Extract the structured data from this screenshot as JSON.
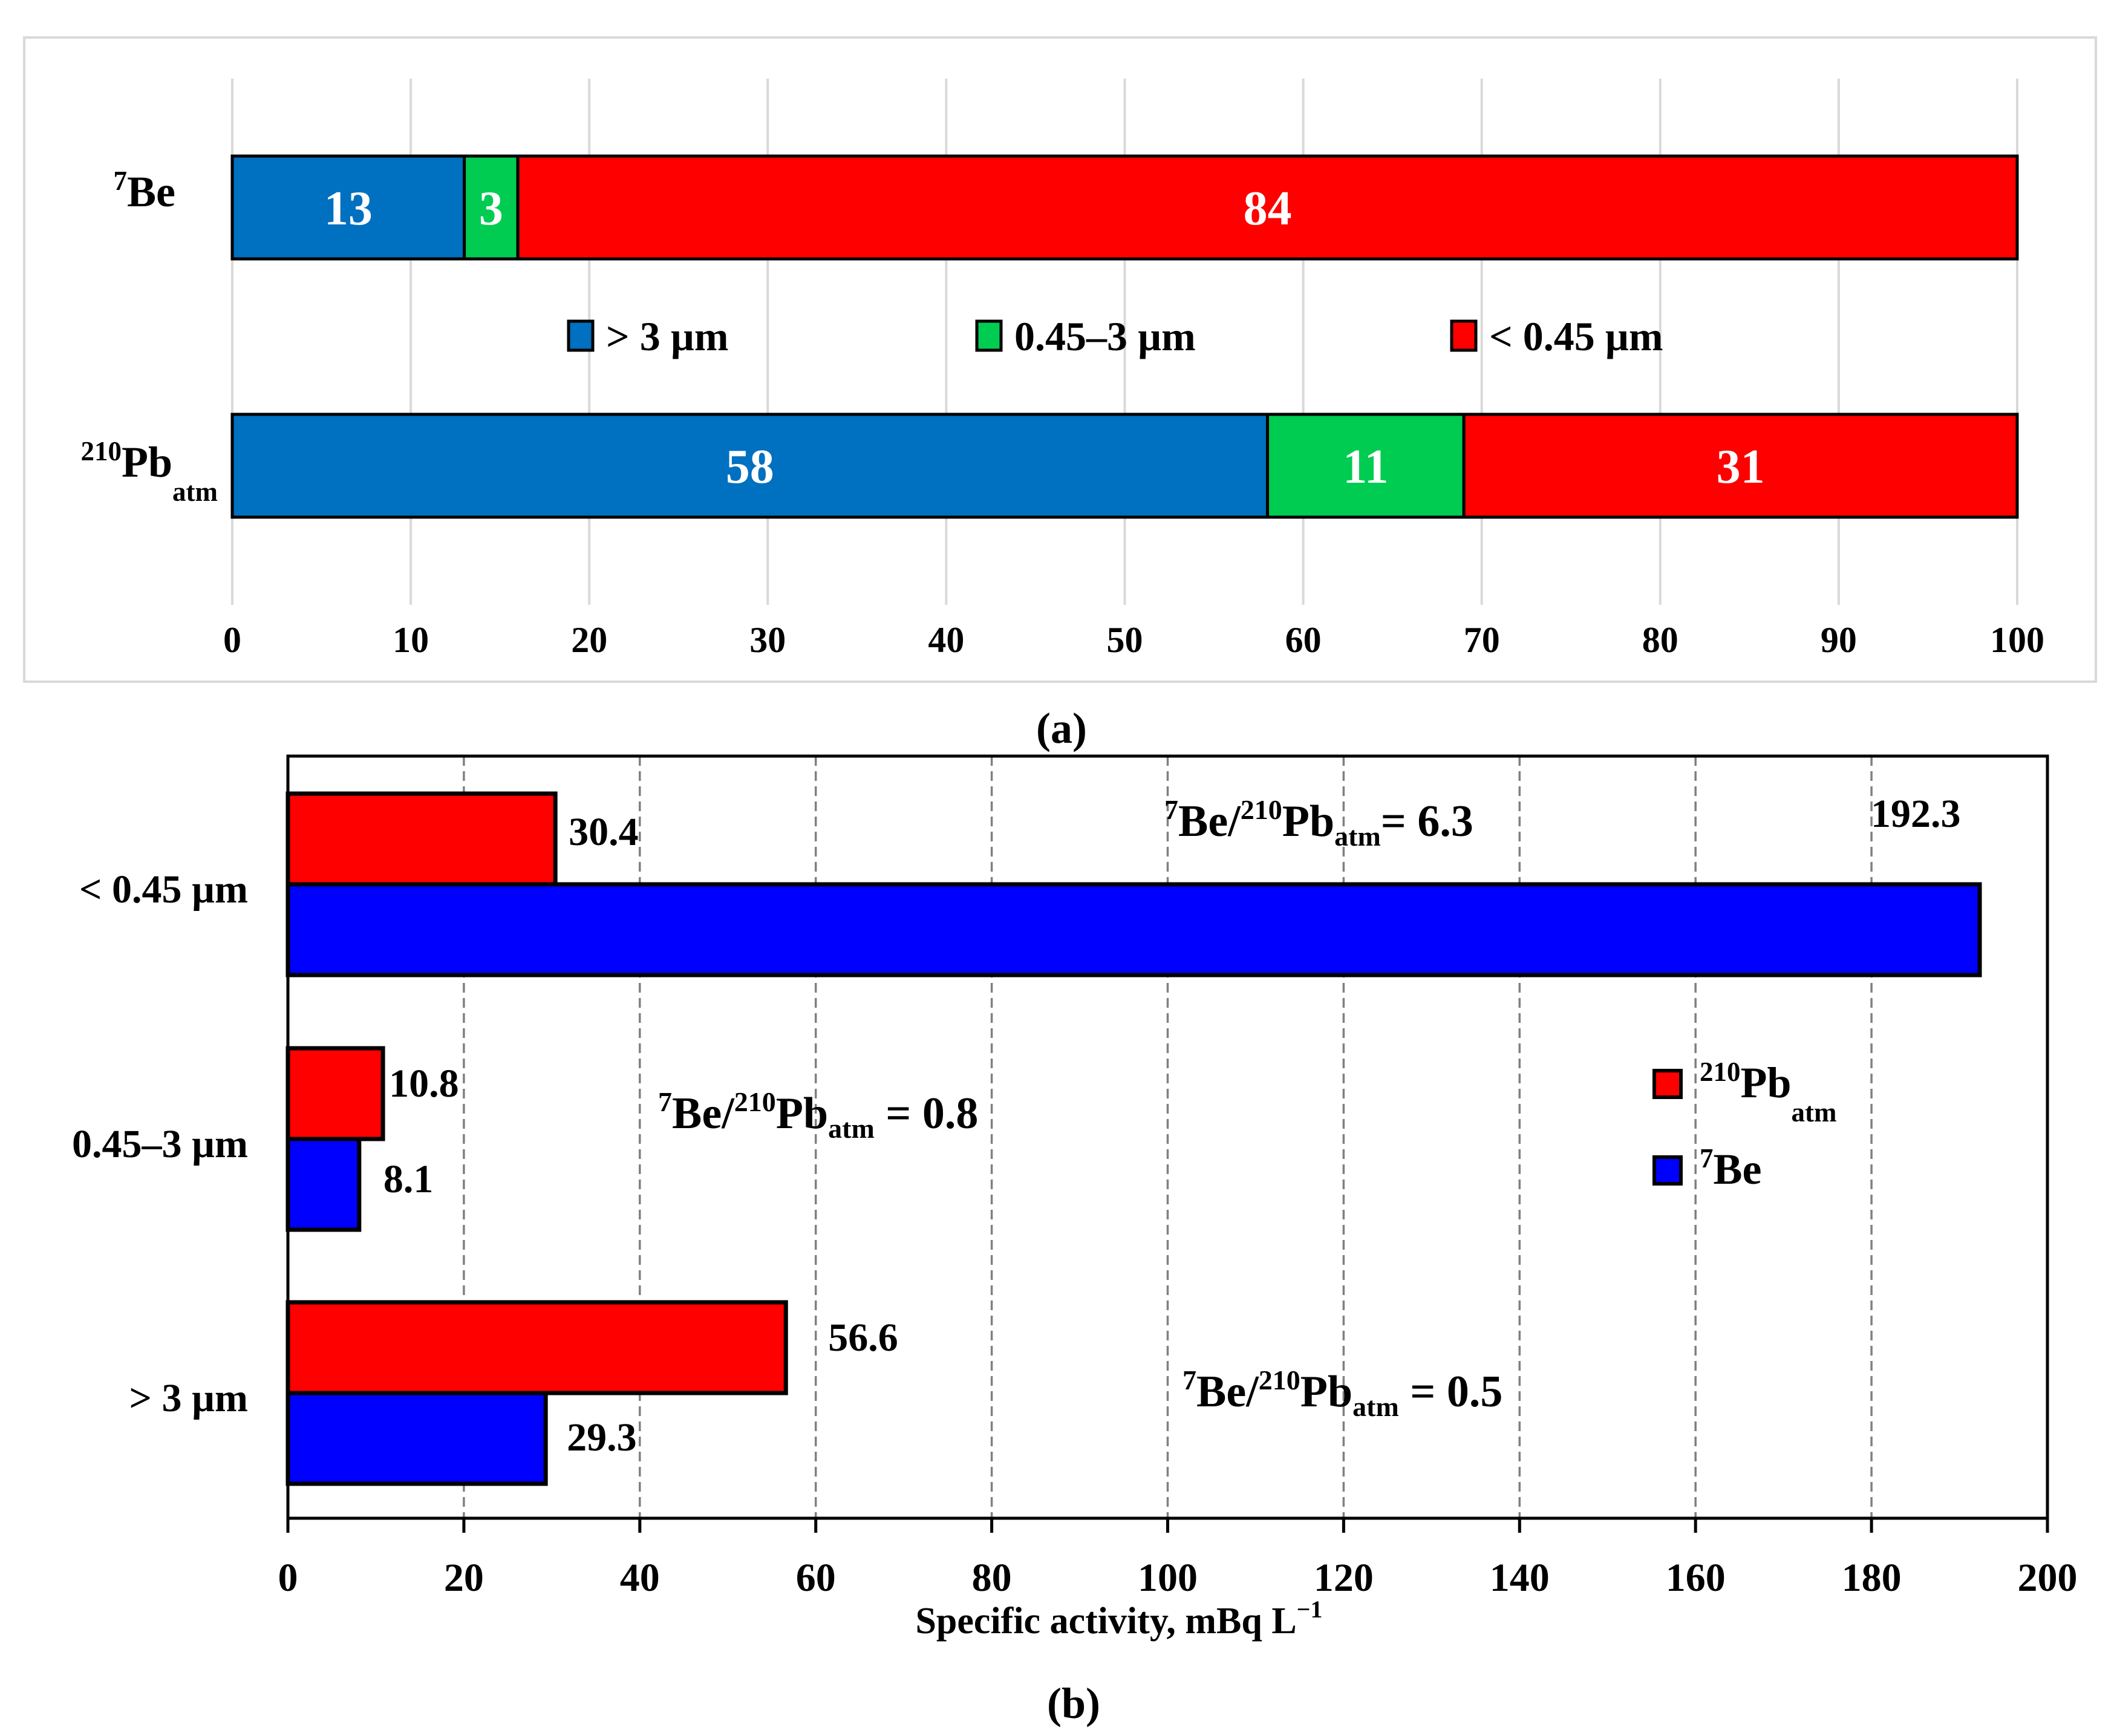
{
  "chart_data": [
    {
      "type": "bar",
      "orientation": "horizontal",
      "stacked": true,
      "panel_label": "(a)",
      "categories": [
        {
          "base": "Be",
          "sup": "7",
          "sub": ""
        },
        {
          "base": "Pb",
          "sup": "210",
          "sub": "atm"
        }
      ],
      "series": [
        {
          "name": "> 3 µm",
          "color": "#0070c0",
          "label_color": "#ffffff",
          "values": [
            13,
            58
          ]
        },
        {
          "name": "0.45–3 µm",
          "color": "#00cc52",
          "label_color": "#ffffff",
          "values": [
            3,
            11
          ]
        },
        {
          "name": "< 0.45 µm",
          "color": "#ff0000",
          "label_color": "#ffffff",
          "values": [
            84,
            31
          ]
        }
      ],
      "xlim": [
        0,
        100
      ],
      "xticks": [
        0,
        10,
        20,
        30,
        40,
        50,
        60,
        70,
        80,
        90,
        100
      ],
      "grid": "vertical",
      "legend": "middle"
    },
    {
      "type": "bar",
      "orientation": "horizontal",
      "stacked": false,
      "panel_label": "(b)",
      "categories": [
        "< 0.45 µm",
        "0.45–3 µm",
        "> 3 µm"
      ],
      "series": [
        {
          "name": {
            "base": "Pb",
            "sup": "210",
            "sub": "atm"
          },
          "color": "#ff0000",
          "values": [
            30.4,
            10.8,
            56.6
          ],
          "labels": [
            "30.4",
            "10.8",
            "56.6"
          ]
        },
        {
          "name": {
            "base": "Be",
            "sup": "7",
            "sub": ""
          },
          "color": "#0000ff",
          "values": [
            192.3,
            8.1,
            29.3
          ],
          "labels": [
            "192.3",
            "8.1",
            "29.3"
          ]
        }
      ],
      "xlabel": {
        "text": "Specific activity, mBq L",
        "sup": "−1"
      },
      "xlim": [
        0,
        200
      ],
      "xticks": [
        0,
        20,
        40,
        60,
        80,
        100,
        120,
        140,
        160,
        180,
        200
      ],
      "grid": "vertical-dashed",
      "legend": "right",
      "annotations": [
        {
          "sup1": "7",
          "t1": "Be/",
          "sup2": "210",
          "t2": "Pb",
          "sub": "atm",
          "t3": "= 6.3"
        },
        {
          "sup1": "7",
          "t1": "Be/",
          "sup2": "210",
          "t2": "Pb",
          "sub": "atm",
          "t3": " = 0.8"
        },
        {
          "sup1": "7",
          "t1": "Be/",
          "sup2": "210",
          "t2": "Pb",
          "sub": "atm",
          "t3": " = 0.5"
        }
      ]
    }
  ]
}
